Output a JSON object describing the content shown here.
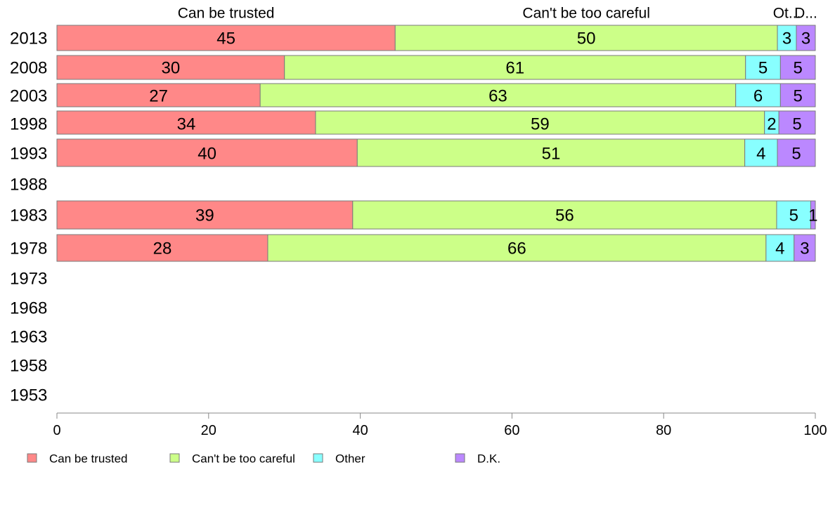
{
  "chart_data": {
    "type": "bar",
    "orientation": "horizontal",
    "stacked": true,
    "categories": [
      "2013",
      "2008",
      "2003",
      "1998",
      "1993",
      "1988",
      "1983",
      "1978",
      "1973",
      "1968",
      "1963",
      "1958",
      "1953"
    ],
    "series": [
      {
        "name": "Can be trusted",
        "short_label": "Can be trusted",
        "color": "#ff8888",
        "values": [
          44.6,
          30.0,
          26.8,
          34.1,
          39.6,
          null,
          39.0,
          27.8,
          null,
          null,
          null,
          null,
          null
        ],
        "labels": [
          "45",
          "30",
          "27",
          "34",
          "40",
          "",
          "39",
          "28",
          "",
          "",
          "",
          "",
          ""
        ]
      },
      {
        "name": "Can't be too careful",
        "short_label": "Can't be too careful",
        "color": "#ccff88",
        "values": [
          50.4,
          60.8,
          62.7,
          59.2,
          51.1,
          null,
          55.9,
          65.7,
          null,
          null,
          null,
          null,
          null
        ],
        "labels": [
          "50",
          "61",
          "63",
          "59",
          "51",
          "",
          "56",
          "66",
          "",
          "",
          "",
          "",
          ""
        ]
      },
      {
        "name": "Other",
        "short_label": "Ot...",
        "color": "#88ffff",
        "values": [
          2.5,
          4.6,
          5.9,
          1.9,
          4.3,
          null,
          4.5,
          3.7,
          null,
          null,
          null,
          null,
          null
        ],
        "labels": [
          "3",
          "5",
          "6",
          "2",
          "4",
          "",
          "5",
          "4",
          "",
          "",
          "",
          "",
          ""
        ]
      },
      {
        "name": "D.K.",
        "short_label": "D...",
        "color": "#bb88ff",
        "values": [
          2.5,
          4.6,
          4.6,
          4.8,
          5.0,
          null,
          0.6,
          2.8,
          null,
          null,
          null,
          null,
          null
        ],
        "labels": [
          "3",
          "5",
          "5",
          "5",
          "5",
          "",
          "1",
          "3",
          "",
          "",
          "",
          "",
          ""
        ]
      }
    ],
    "xlim": [
      0,
      100
    ],
    "xticks": [
      "0",
      "20",
      "40",
      "60",
      "80",
      "100"
    ],
    "legend_position": "bottom",
    "grid": false
  }
}
